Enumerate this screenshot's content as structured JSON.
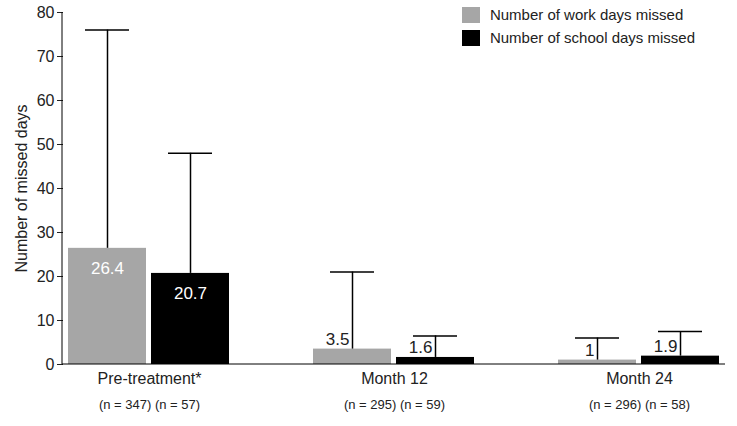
{
  "chart_data": {
    "type": "bar",
    "categories": [
      "Pre-treatment*",
      "Month 12",
      "Month 24"
    ],
    "category_notes": [
      "(n = 347) (n = 57)",
      "(n = 295) (n = 59)",
      "(n = 296) (n = 58)"
    ],
    "y_label": "Number of missed days",
    "series": [
      {
        "name": "Number of work days missed",
        "color": "#a6a6a6",
        "values": [
          26.4,
          3.5,
          1
        ],
        "errors": [
          49.6,
          17.5,
          5
        ]
      },
      {
        "name": "Number of school days missed",
        "color": "#000000",
        "values": [
          20.7,
          1.6,
          1.9
        ],
        "errors": [
          27.3,
          4.9,
          5.6
        ]
      }
    ],
    "ylim": [
      0,
      80
    ],
    "yticks": [
      0,
      10,
      20,
      30,
      40,
      50,
      60,
      70,
      80
    ],
    "grid": false,
    "legend": "top-right",
    "data_labels": true
  }
}
